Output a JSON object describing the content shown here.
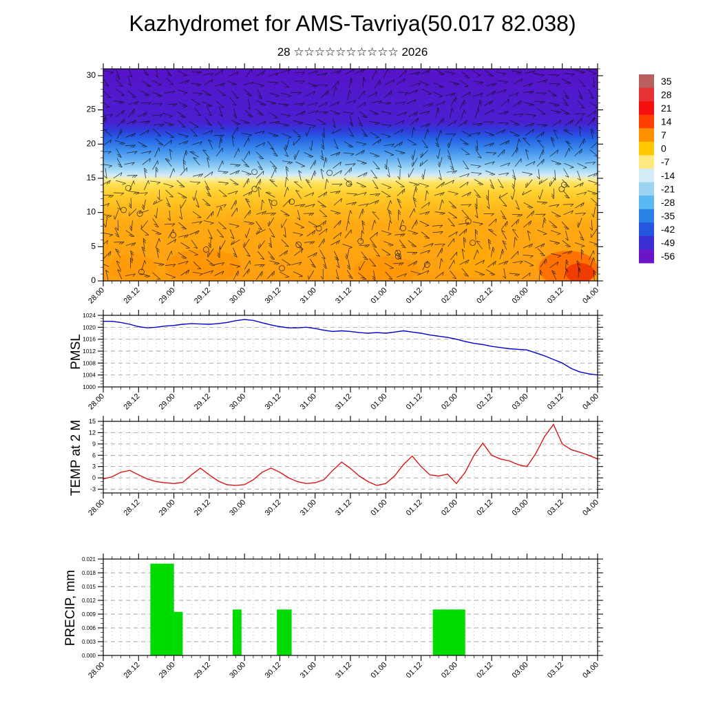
{
  "title": "Kazhydromet for AMS-Tavriya(50.017 82.038)",
  "subtitle": "28 ☆☆☆☆☆☆☆☆☆☆ 2026",
  "time_axis": {
    "hours_total": 168,
    "major_step": 12,
    "minor_step": 3,
    "tick_labels": [
      "28.00",
      "28.12",
      "29.00",
      "29.12",
      "30.00",
      "30.12",
      "31.00",
      "31.12",
      "01.00",
      "01.12",
      "02.00",
      "02.12",
      "03.00",
      "03.12",
      "04.00"
    ]
  },
  "colorbar": {
    "labels": [
      "35",
      "28",
      "21",
      "14",
      "7",
      "0",
      "-7",
      "-14",
      "-21",
      "-28",
      "-35",
      "-42",
      "-49",
      "-56"
    ],
    "colors": [
      "#b86060",
      "#e63232",
      "#f50f0f",
      "#ff4000",
      "#ff9100",
      "#ffc800",
      "#ffe87d",
      "#d5ecf9",
      "#9cd4f2",
      "#5cb8f0",
      "#2a82e8",
      "#2456de",
      "#3b2ed4",
      "#6c14c8"
    ]
  },
  "chart_data": [
    {
      "type": "heatmap",
      "name": "temperature-height-cross-section",
      "title": "time-height temperature section with wind barbs",
      "ylabel": "",
      "ylim": [
        0,
        31
      ],
      "y_ticks": [
        0,
        5,
        10,
        15,
        20,
        25,
        30
      ],
      "y_minor_step": 1,
      "y_font": 12,
      "grid": false,
      "legend": "temperature colorbar from -56 to 35 step 7",
      "level_bands": [
        {
          "levels": [
            22,
            31
          ],
          "approx_temp": "-49 to -56"
        },
        {
          "levels": [
            18,
            22
          ],
          "approx_temp": "-35 to -49"
        },
        {
          "levels": [
            15,
            18
          ],
          "approx_temp": "-14 to -35"
        },
        {
          "levels": [
            13,
            15
          ],
          "approx_temp": "-7 to -14"
        },
        {
          "levels": [
            8,
            13
          ],
          "approx_temp": "-7 to 0"
        },
        {
          "levels": [
            0,
            8
          ],
          "approx_temp": "0 to 7"
        }
      ],
      "gradient_stops": [
        {
          "offset": 0,
          "color": "#5813c9"
        },
        {
          "offset": 25,
          "color": "#4a1fd0"
        },
        {
          "offset": 29,
          "color": "#2f3bda"
        },
        {
          "offset": 33,
          "color": "#2563e4"
        },
        {
          "offset": 38,
          "color": "#3c8cec"
        },
        {
          "offset": 43,
          "color": "#6ab4f2"
        },
        {
          "offset": 47,
          "color": "#9ed6f6"
        },
        {
          "offset": 50,
          "color": "#cfeafb"
        },
        {
          "offset": 52,
          "color": "#f6eda4"
        },
        {
          "offset": 54,
          "color": "#ffe25a"
        },
        {
          "offset": 58,
          "color": "#ffd232"
        },
        {
          "offset": 64,
          "color": "#ffbe1e"
        },
        {
          "offset": 73,
          "color": "#ffaa14"
        },
        {
          "offset": 100,
          "color": "#ff9e10"
        }
      ],
      "warm_patches": [
        {
          "hour": 158,
          "level": 1.8,
          "rw": 10,
          "rh": 2.6,
          "color": "#ff6a00",
          "opacity": 0.85
        },
        {
          "hour": 162,
          "level": 1.2,
          "rw": 5,
          "rh": 1.4,
          "color": "#ee2e00",
          "opacity": 0.8
        },
        {
          "hour": 34,
          "level": 2.2,
          "rw": 13,
          "rh": 2.4,
          "color": "#ff8c00",
          "opacity": 0.5
        },
        {
          "hour": 96,
          "level": 1.6,
          "rw": 11,
          "rh": 2.0,
          "color": "#ff8c00",
          "opacity": 0.45
        },
        {
          "hour": 127,
          "level": 3.0,
          "rw": 9,
          "rh": 2.4,
          "color": "#ffb000",
          "opacity": 0.45
        },
        {
          "hour": 10,
          "level": 2.0,
          "rw": 8,
          "rh": 2.0,
          "color": "#ff9400",
          "opacity": 0.4
        }
      ]
    },
    {
      "type": "line",
      "name": "pmsl",
      "ylabel": "PMSL",
      "color": "#0000cd",
      "ylim": [
        1000,
        1024
      ],
      "y_ticks": [
        1000,
        1004,
        1008,
        1012,
        1016,
        1020,
        1024
      ],
      "y_minor_step": 1,
      "y_font": 8.5,
      "x_start_hour": 0,
      "x_step_hours": 3,
      "values": [
        1022,
        1022,
        1021.6,
        1021,
        1020.2,
        1019.8,
        1020,
        1020.4,
        1020.6,
        1021,
        1021.2,
        1021.1,
        1021,
        1021.2,
        1021.6,
        1022.2,
        1022.6,
        1022.3,
        1021.5,
        1020.8,
        1020.2,
        1019.8,
        1019.8,
        1020,
        1019.6,
        1019,
        1018.6,
        1018.8,
        1018.6,
        1018.2,
        1018,
        1018.2,
        1018,
        1018.4,
        1018.8,
        1018.4,
        1018,
        1017.4,
        1017,
        1016.6,
        1016,
        1015.2,
        1014.6,
        1014.2,
        1013.6,
        1013.2,
        1012.8,
        1012.6,
        1012.4,
        1011.4,
        1010.4,
        1009.2,
        1008,
        1006.2,
        1005,
        1004.4,
        1004
      ]
    },
    {
      "type": "line",
      "name": "temp-2m",
      "ylabel": "TEMP at 2 M",
      "color": "#dc1414",
      "ylim": [
        -4,
        15
      ],
      "y_ticks": [
        -3,
        0,
        3,
        6,
        9,
        12,
        15
      ],
      "y_minor_step": 1,
      "y_font": 9,
      "x_start_hour": 0,
      "x_step_hours": 3,
      "values": [
        -0.3,
        0.3,
        1.5,
        2.0,
        0.8,
        -0.3,
        -1.0,
        -1.3,
        -1.5,
        -1.2,
        0.8,
        2.6,
        0.8,
        -0.8,
        -1.8,
        -2.0,
        -1.8,
        -0.5,
        1.5,
        2.6,
        1.5,
        0.0,
        -1.0,
        -1.5,
        -1.3,
        -0.5,
        2.0,
        4.2,
        2.5,
        0.5,
        -1.0,
        -2.0,
        -1.5,
        0.5,
        3.5,
        5.8,
        3.0,
        0.8,
        0.5,
        1.0,
        -1.5,
        1.5,
        6.0,
        9.2,
        6.0,
        5.0,
        4.5,
        3.5,
        3.0,
        6.5,
        11.0,
        14.2,
        9.0,
        7.5,
        6.8,
        6.0,
        5.0
      ]
    },
    {
      "type": "bar",
      "name": "precip",
      "ylabel": "PRECIP, mm",
      "color": "#00dc00",
      "ylim": [
        0,
        0.021
      ],
      "y_ticks": [
        "0.000",
        "0.003",
        "0.006",
        "0.009",
        "0.012",
        "0.015",
        "0.018",
        "0.021"
      ],
      "y_minor_step": 0.001,
      "y_font": 8,
      "bars": [
        {
          "start_hour": 16,
          "end_hour": 24,
          "value": 0.02
        },
        {
          "start_hour": 24,
          "end_hour": 27,
          "value": 0.0095
        },
        {
          "start_hour": 44,
          "end_hour": 47,
          "value": 0.01
        },
        {
          "start_hour": 59,
          "end_hour": 64,
          "value": 0.01
        },
        {
          "start_hour": 112,
          "end_hour": 123,
          "value": 0.01
        }
      ]
    }
  ]
}
